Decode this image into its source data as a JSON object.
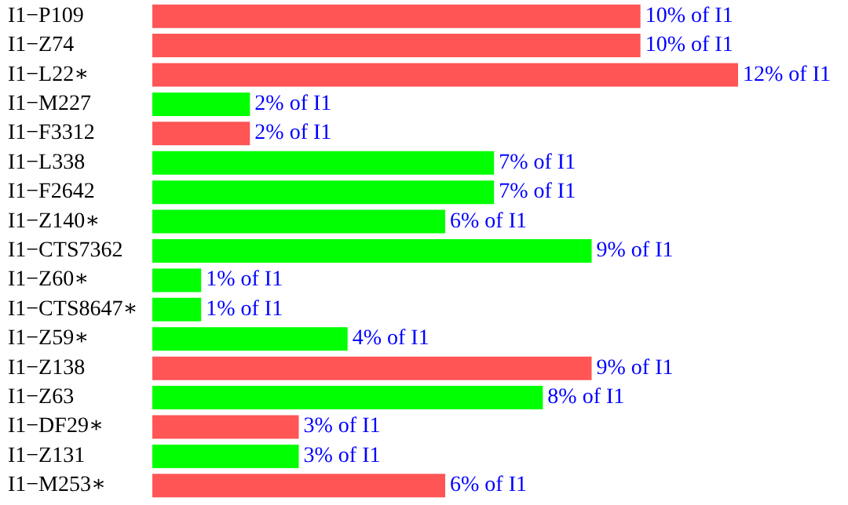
{
  "chart_data": {
    "type": "bar",
    "orientation": "horizontal",
    "categories": [
      "I1−P109",
      "I1−Z74",
      "I1−L22∗",
      "I1−M227",
      "I1−F3312",
      "I1−L338",
      "I1−F2642",
      "I1−Z140∗",
      "I1−CTS7362",
      "I1−Z60∗",
      "I1−CTS8647∗",
      "I1−Z59∗",
      "I1−Z138",
      "I1−Z63",
      "I1−DF29∗",
      "I1−Z131",
      "I1−M253∗"
    ],
    "values": [
      10,
      10,
      12,
      2,
      2,
      7,
      7,
      6,
      9,
      1,
      1,
      4,
      9,
      8,
      3,
      3,
      6
    ],
    "value_labels": [
      "10% of I1",
      "10% of I1",
      "12% of I1",
      "2% of I1",
      "2% of I1",
      "7% of I1",
      "7% of I1",
      "6% of I1",
      "9% of I1",
      "1% of I1",
      "1% of I1",
      "4% of I1",
      "9% of I1",
      "8% of I1",
      "3% of I1",
      "3% of I1",
      "6% of I1"
    ],
    "colors": [
      "#ff5555",
      "#ff5555",
      "#ff5555",
      "#00ff00",
      "#ff5555",
      "#00ff00",
      "#00ff00",
      "#00ff00",
      "#00ff00",
      "#00ff00",
      "#00ff00",
      "#00ff00",
      "#ff5555",
      "#00ff00",
      "#ff5555",
      "#00ff00",
      "#ff5555"
    ]
  }
}
